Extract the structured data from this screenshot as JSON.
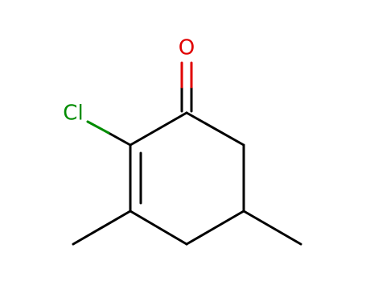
{
  "atoms": [
    {
      "label": "O"
    },
    {
      "label": "Cl"
    }
  ]
}
